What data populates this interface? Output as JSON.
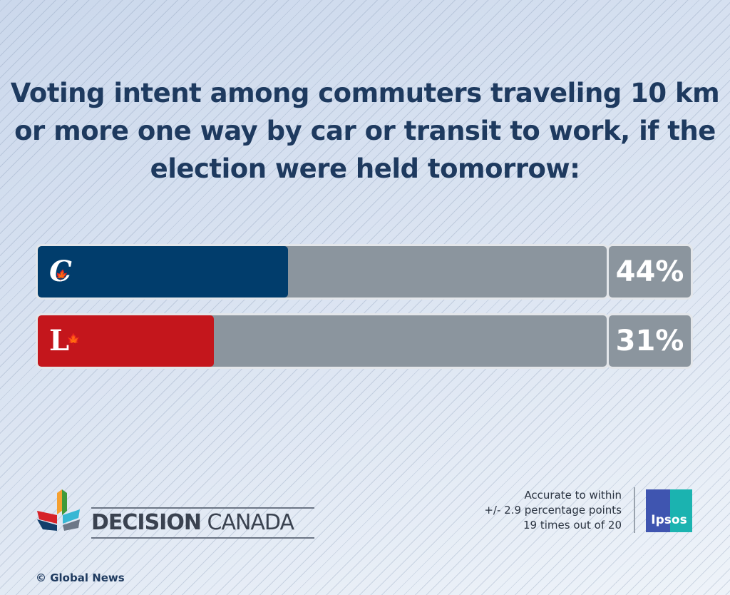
{
  "chart_data": {
    "type": "bar",
    "title": "Voting intent among commuters traveling 10 km or more one way by car or transit to work, if the election were held tomorrow:",
    "categories": [
      "Conservative",
      "Liberal"
    ],
    "values": [
      44,
      31
    ],
    "value_labels": [
      "44%",
      "31%"
    ],
    "colors": [
      "#013D6C",
      "#C4161C"
    ],
    "xlim": [
      0,
      100
    ]
  },
  "branding": {
    "logo_text_bold": "DECISION",
    "logo_text_light": "CANADA",
    "copyright": "© Global News",
    "pollster": "Ipsos"
  },
  "note": {
    "line1": "Accurate to within",
    "line2": "+/- 2.9 percentage points",
    "line3": "19 times out of 20"
  }
}
